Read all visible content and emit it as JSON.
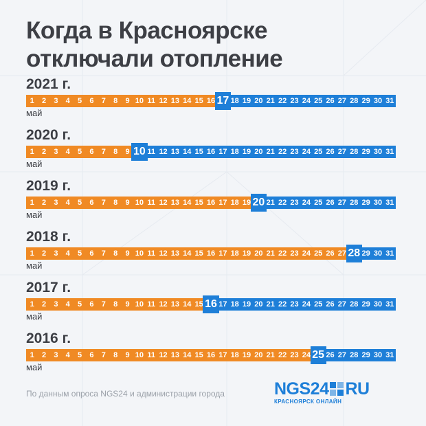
{
  "title_lines": [
    "Когда в Красноярске",
    "отключали отопление"
  ],
  "month_label": "май",
  "footnote": "По данным опроса NGS24 и администрации города",
  "logo": {
    "left": "NGS24",
    "right": "RU",
    "sub": "КРАСНОЯРСК ОНЛАЙН"
  },
  "colors": {
    "heating_on": "#f08a24",
    "heating_off": "#1e7fd8",
    "text": "#3d3f45"
  },
  "chart_data": {
    "type": "table",
    "days": [
      1,
      2,
      3,
      4,
      5,
      6,
      7,
      8,
      9,
      10,
      11,
      12,
      13,
      14,
      15,
      16,
      17,
      18,
      19,
      20,
      21,
      22,
      23,
      24,
      25,
      26,
      27,
      28,
      29,
      30,
      31
    ],
    "rows": [
      {
        "label": "2021 г.",
        "year": 2021,
        "shutoff_day": 17
      },
      {
        "label": "2020 г.",
        "year": 2020,
        "shutoff_day": 10
      },
      {
        "label": "2019 г.",
        "year": 2019,
        "shutoff_day": 20
      },
      {
        "label": "2018 г.",
        "year": 2018,
        "shutoff_day": 28
      },
      {
        "label": "2017 г.",
        "year": 2017,
        "shutoff_day": 16
      },
      {
        "label": "2016 г.",
        "year": 2016,
        "shutoff_day": 25
      }
    ]
  }
}
